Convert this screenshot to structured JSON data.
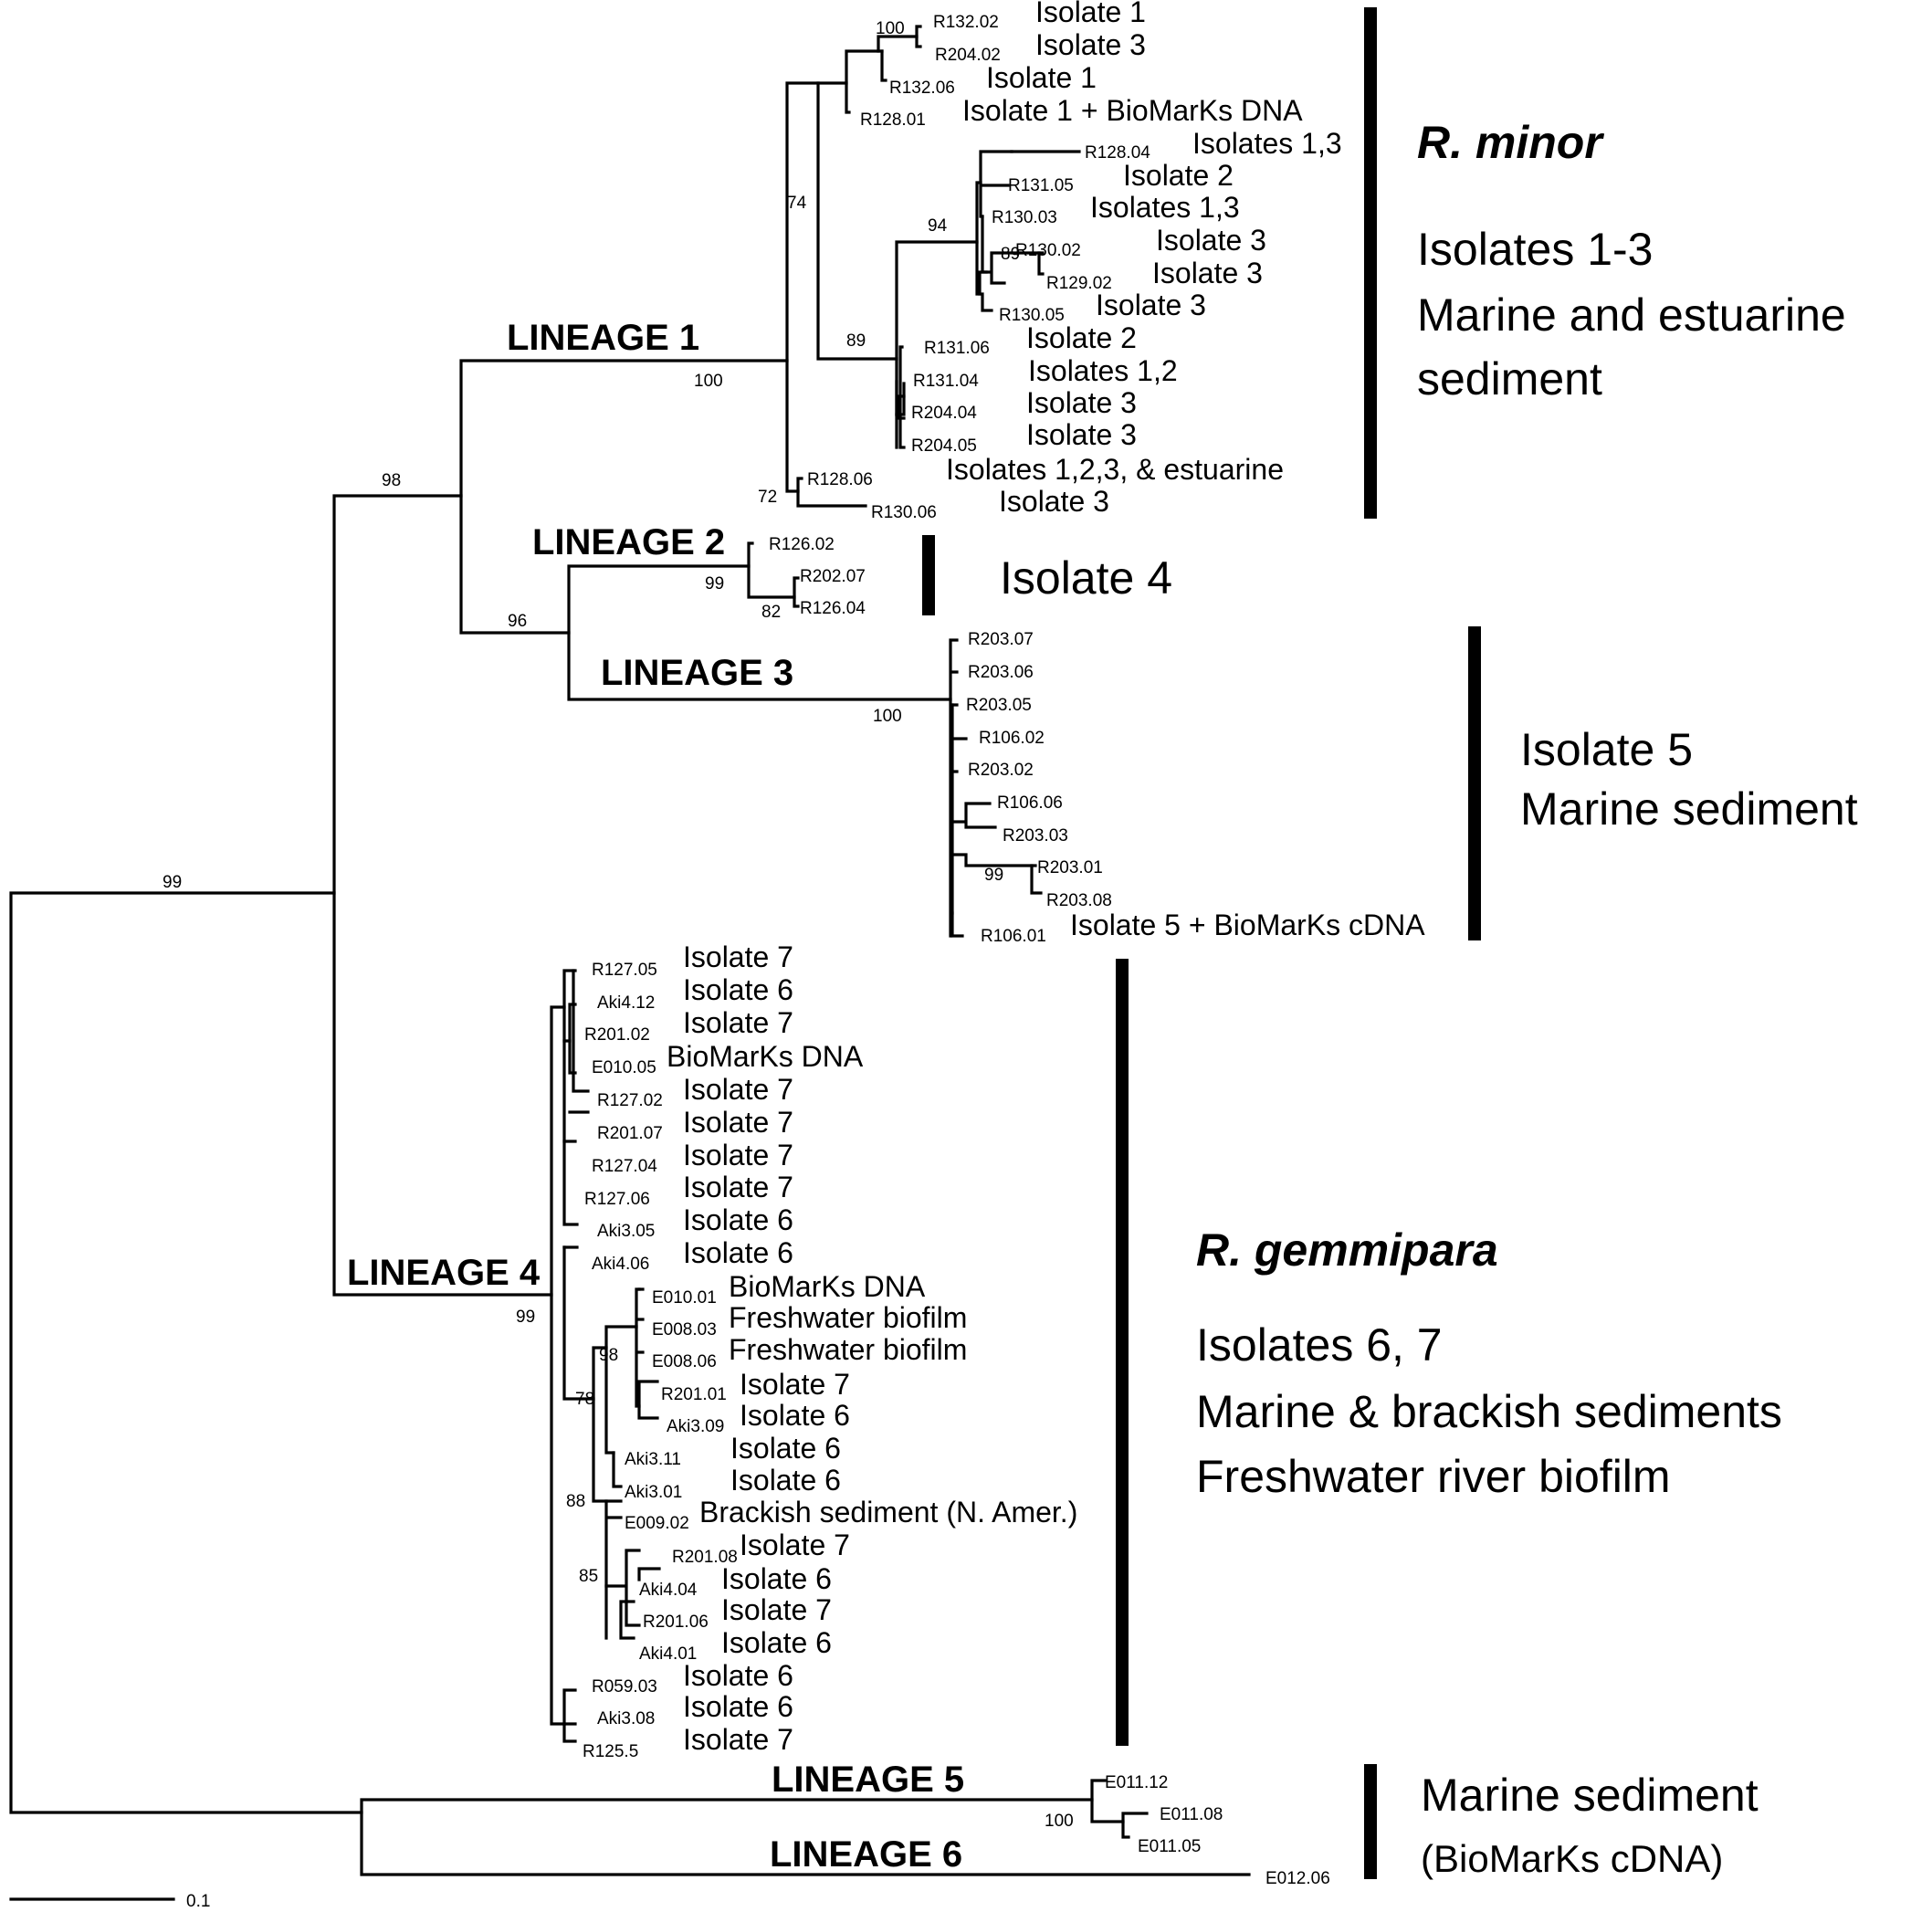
{
  "taxa": [
    {
      "acc": "R132.02",
      "site": "Isolate 1"
    },
    {
      "acc": "R204.02",
      "site": "Isolate 3"
    },
    {
      "acc": "R132.06",
      "site": "Isolate 1"
    },
    {
      "acc": "R128.01",
      "site": "Isolate 1 + BioMarKs DNA"
    },
    {
      "acc": "R128.04",
      "site": "Isolates 1,3"
    },
    {
      "acc": "R131.05",
      "site": "Isolate 2"
    },
    {
      "acc": "R130.03",
      "site": "Isolates 1,3"
    },
    {
      "acc": "R130.02",
      "site": "Isolate 3"
    },
    {
      "acc": "R129.02",
      "site": "Isolate 3"
    },
    {
      "acc": "R130.05",
      "site": "Isolate 3"
    },
    {
      "acc": "R131.06",
      "site": "Isolate 2"
    },
    {
      "acc": "R131.04",
      "site": "Isolates 1,2"
    },
    {
      "acc": "R204.04",
      "site": "Isolate 3"
    },
    {
      "acc": "R204.05",
      "site": "Isolate 3"
    },
    {
      "acc": "R128.06",
      "site": "Isolates 1,2,3, & estuarine"
    },
    {
      "acc": "R130.06",
      "site": "Isolate 3"
    },
    {
      "acc": "R126.02",
      "site": ""
    },
    {
      "acc": "R202.07",
      "site": ""
    },
    {
      "acc": "R126.04",
      "site": ""
    },
    {
      "acc": "R203.07",
      "site": ""
    },
    {
      "acc": "R203.06",
      "site": ""
    },
    {
      "acc": "R203.05",
      "site": ""
    },
    {
      "acc": "R106.02",
      "site": ""
    },
    {
      "acc": "R203.02",
      "site": ""
    },
    {
      "acc": "R106.06",
      "site": ""
    },
    {
      "acc": "R203.03",
      "site": ""
    },
    {
      "acc": "R203.01",
      "site": ""
    },
    {
      "acc": "R203.08",
      "site": ""
    },
    {
      "acc": "R106.01",
      "site": "Isolate 5 + BioMarKs cDNA"
    },
    {
      "acc": "R127.05",
      "site": "Isolate 7"
    },
    {
      "acc": "Aki4.12",
      "site": "Isolate 6"
    },
    {
      "acc": "R201.02",
      "site": "Isolate 7"
    },
    {
      "acc": "E010.05",
      "site": "BioMarKs DNA"
    },
    {
      "acc": "R127.02",
      "site": "Isolate 7"
    },
    {
      "acc": "R201.07",
      "site": "Isolate 7"
    },
    {
      "acc": "R127.04",
      "site": "Isolate 7"
    },
    {
      "acc": "R127.06",
      "site": "Isolate 7"
    },
    {
      "acc": "Aki3.05",
      "site": "Isolate 6"
    },
    {
      "acc": "Aki4.06",
      "site": "Isolate 6"
    },
    {
      "acc": "E010.01",
      "site": "BioMarKs DNA"
    },
    {
      "acc": "E008.03",
      "site": "Freshwater biofilm"
    },
    {
      "acc": "E008.06",
      "site": "Freshwater biofilm"
    },
    {
      "acc": "R201.01",
      "site": "Isolate 7"
    },
    {
      "acc": "Aki3.09",
      "site": "Isolate 6"
    },
    {
      "acc": "Aki3.11",
      "site": "Isolate 6"
    },
    {
      "acc": "Aki3.01",
      "site": "Isolate 6"
    },
    {
      "acc": "E009.02",
      "site": "Brackish sediment (N. Amer.)"
    },
    {
      "acc": "R201.08",
      "site": "Isolate 7"
    },
    {
      "acc": "Aki4.04",
      "site": "Isolate 6"
    },
    {
      "acc": "R201.06",
      "site": "Isolate 7"
    },
    {
      "acc": "Aki4.01",
      "site": "Isolate 6"
    },
    {
      "acc": "R059.03",
      "site": "Isolate 6"
    },
    {
      "acc": "Aki3.08",
      "site": "Isolate 6"
    },
    {
      "acc": "R125.5",
      "site": "Isolate 7"
    },
    {
      "acc": "E011.12",
      "site": ""
    },
    {
      "acc": "E011.08",
      "site": ""
    },
    {
      "acc": "E011.05",
      "site": ""
    },
    {
      "acc": "E012.06",
      "site": ""
    }
  ],
  "bootstrap": [
    "100",
    "74",
    "94",
    "89",
    "89",
    "72",
    "100",
    "98",
    "99",
    "82",
    "96",
    "100",
    "99",
    "99",
    "98",
    "78",
    "88",
    "85",
    "99",
    "100"
  ],
  "lineages": [
    "LINEAGE 1",
    "LINEAGE 2",
    "LINEAGE 3",
    "LINEAGE 4",
    "LINEAGE 5",
    "LINEAGE 6"
  ],
  "groups": {
    "g1_species": "R. minor",
    "g1_lines": [
      "Isolates 1-3",
      "Marine and estuarine",
      "sediment"
    ],
    "g2_line": "Isolate 4",
    "g3_lines": [
      "Isolate 5",
      "Marine sediment"
    ],
    "g4_species": "R. gemmipara",
    "g4_lines": [
      "Isolates 6, 7",
      "Marine & brackish sediments",
      "Freshwater river biofilm"
    ],
    "g5_lines": [
      "Marine sediment",
      "(BioMarKs cDNA)"
    ]
  },
  "scale_label": "0.1"
}
